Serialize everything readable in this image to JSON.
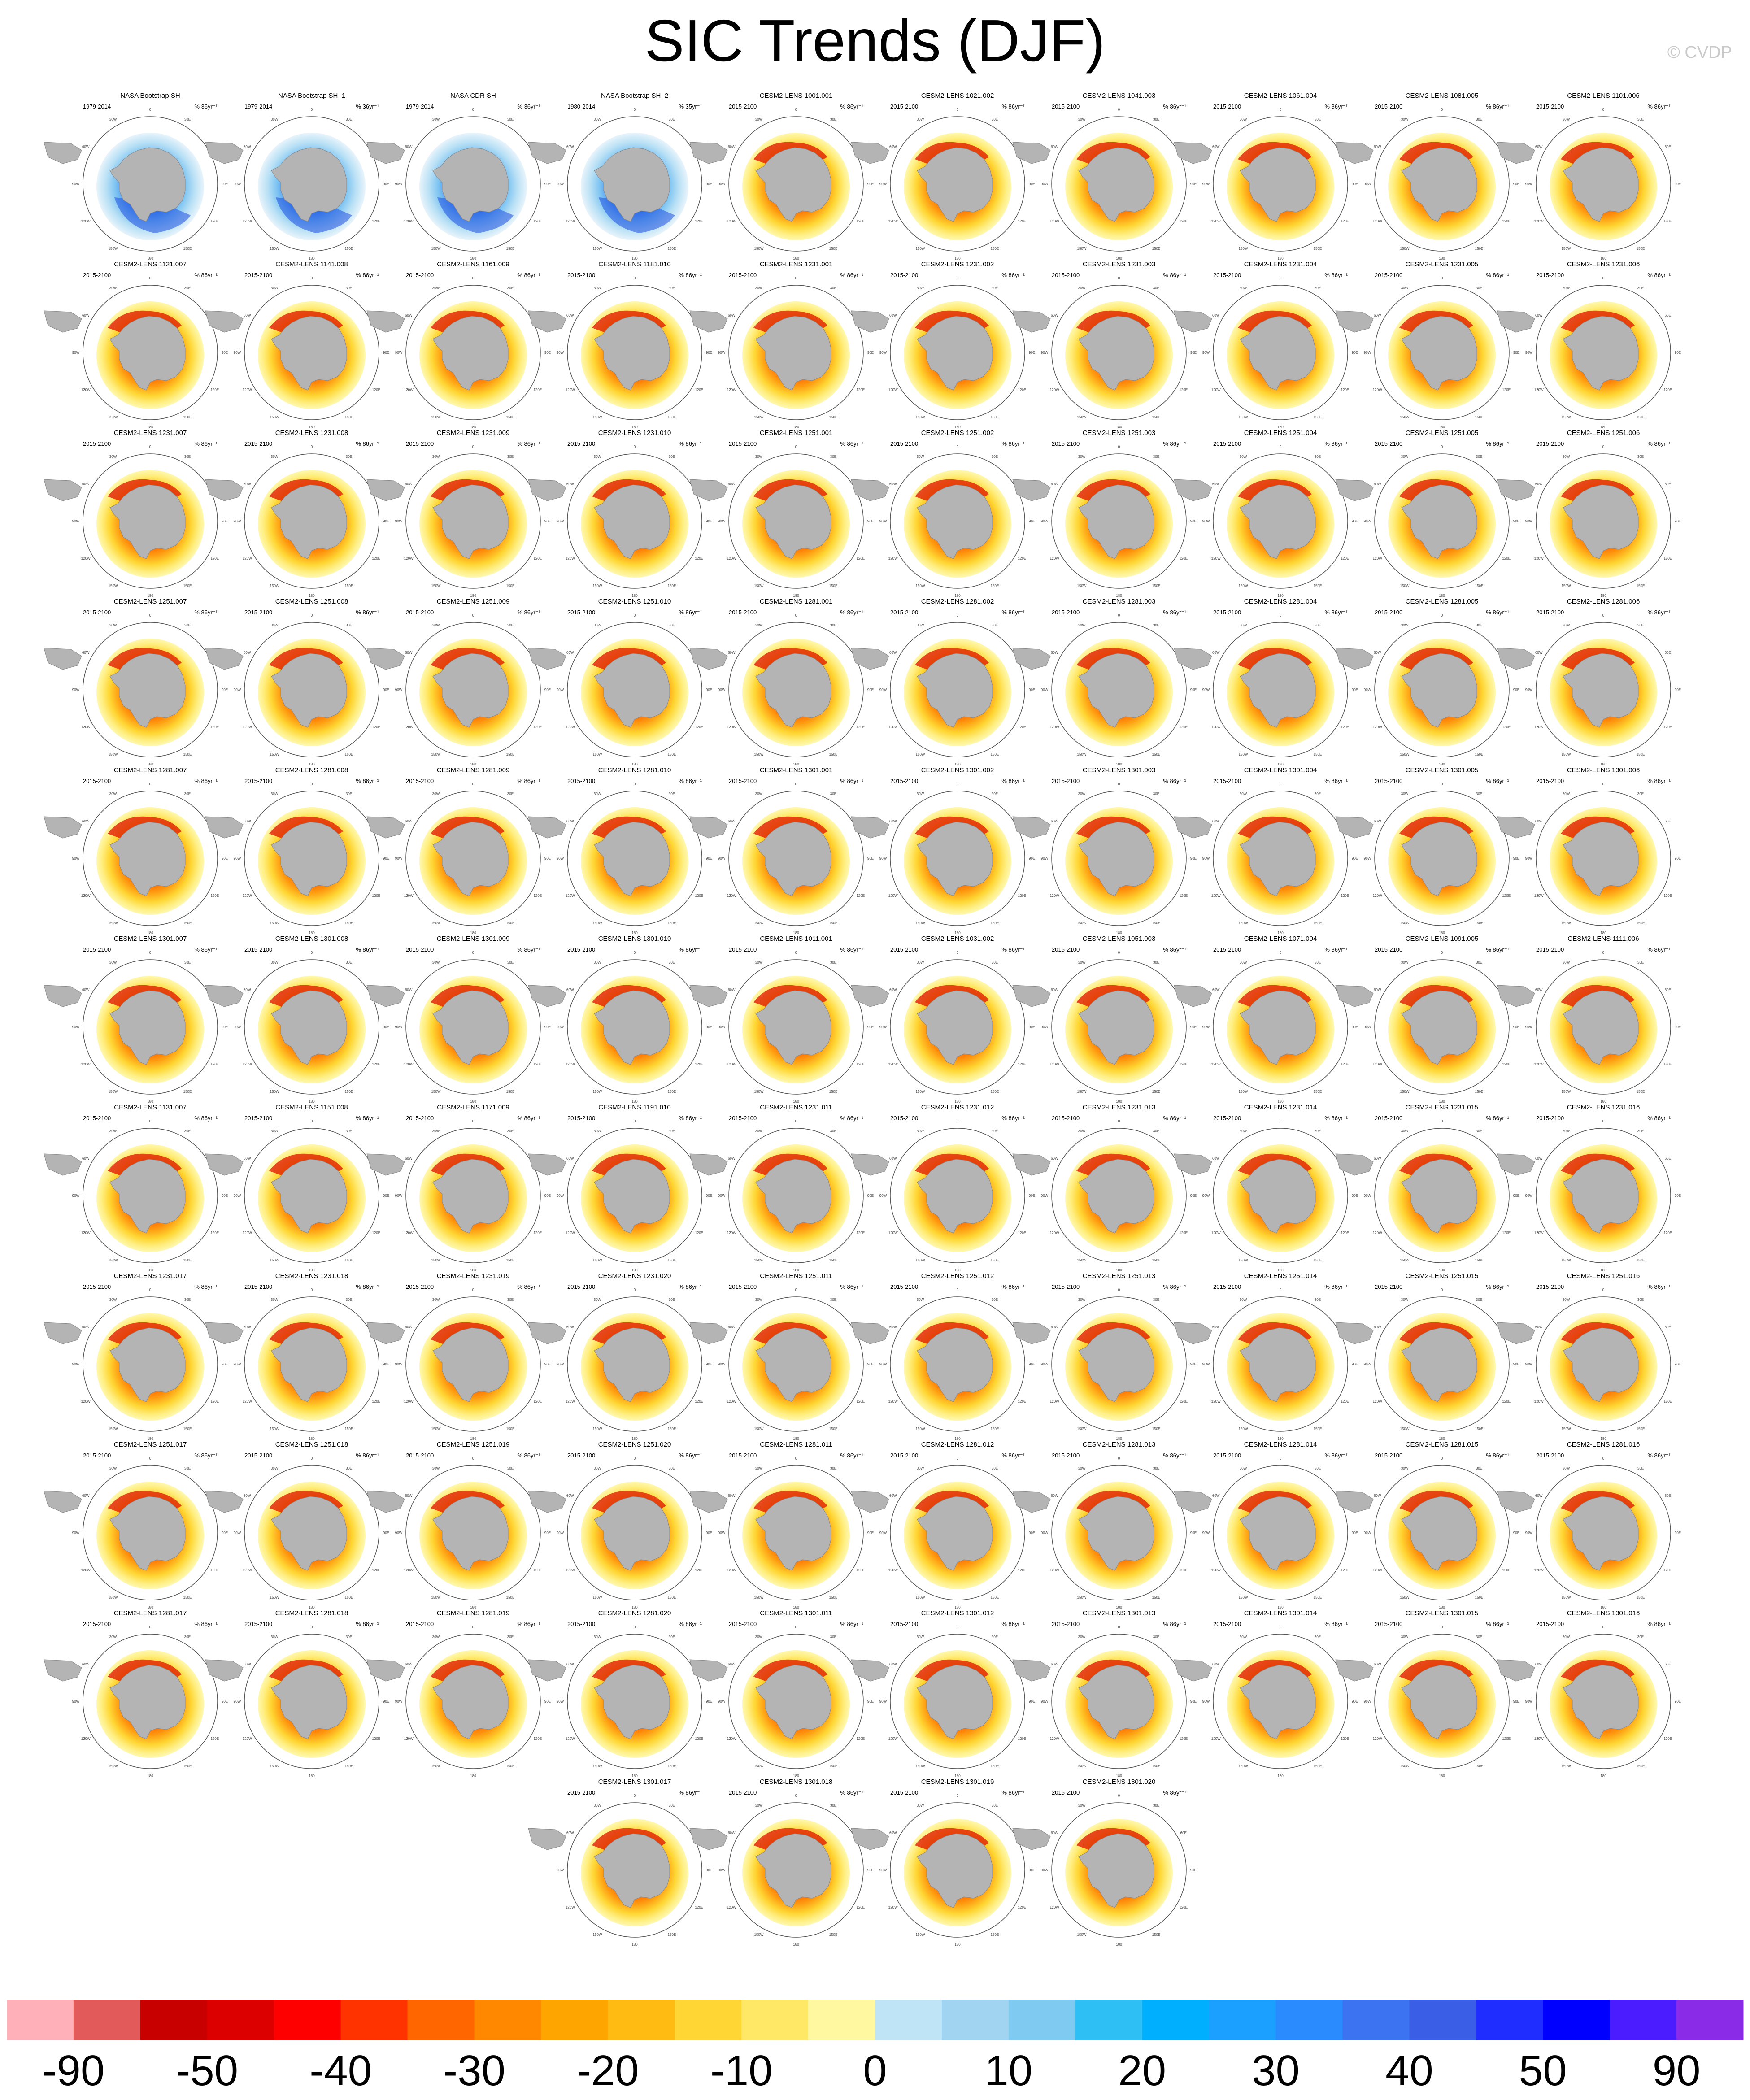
{
  "title": "SIC Trends (DJF)",
  "copyright": "© CVDP",
  "chart_data": {
    "type": "map-panel-grid",
    "projection": "south-polar-stereographic",
    "season": "DJF",
    "ring_labels": [
      "0",
      "30E",
      "60E",
      "90E",
      "120E",
      "150E",
      "180",
      "150W",
      "120W",
      "90W",
      "60W",
      "30W"
    ],
    "panels": [
      {
        "name": "NASA Bootstrap SH",
        "period": "1979-2014",
        "units": "% 36yr⁻¹",
        "obs": true
      },
      {
        "name": "NASA Bootstrap SH_1",
        "period": "1979-2014",
        "units": "% 36yr⁻¹",
        "obs": true
      },
      {
        "name": "NASA CDR SH",
        "period": "1979-2014",
        "units": "% 36yr⁻¹",
        "obs": true
      },
      {
        "name": "NASA Bootstrap SH_2",
        "period": "1980-2014",
        "units": "% 35yr⁻¹",
        "obs": true
      },
      {
        "name": "CESM2-LENS 1001.001",
        "period": "2015-2100",
        "units": "% 86yr⁻¹"
      },
      {
        "name": "CESM2-LENS 1021.002",
        "period": "2015-2100",
        "units": "% 86yr⁻¹"
      },
      {
        "name": "CESM2-LENS 1041.003",
        "period": "2015-2100",
        "units": "% 86yr⁻¹"
      },
      {
        "name": "CESM2-LENS 1061.004",
        "period": "2015-2100",
        "units": "% 86yr⁻¹"
      },
      {
        "name": "CESM2-LENS 1081.005",
        "period": "2015-2100",
        "units": "% 86yr⁻¹"
      },
      {
        "name": "CESM2-LENS 1101.006",
        "period": "2015-2100",
        "units": "% 86yr⁻¹"
      },
      {
        "name": "CESM2-LENS 1121.007",
        "period": "2015-2100",
        "units": "% 86yr⁻¹"
      },
      {
        "name": "CESM2-LENS 1141.008",
        "period": "2015-2100",
        "units": "% 86yr⁻¹"
      },
      {
        "name": "CESM2-LENS 1161.009",
        "period": "2015-2100",
        "units": "% 86yr⁻¹"
      },
      {
        "name": "CESM2-LENS 1181.010",
        "period": "2015-2100",
        "units": "% 86yr⁻¹"
      },
      {
        "name": "CESM2-LENS 1231.001",
        "period": "2015-2100",
        "units": "% 86yr⁻¹"
      },
      {
        "name": "CESM2-LENS 1231.002",
        "period": "2015-2100",
        "units": "% 86yr⁻¹"
      },
      {
        "name": "CESM2-LENS 1231.003",
        "period": "2015-2100",
        "units": "% 86yr⁻¹"
      },
      {
        "name": "CESM2-LENS 1231.004",
        "period": "2015-2100",
        "units": "% 86yr⁻¹"
      },
      {
        "name": "CESM2-LENS 1231.005",
        "period": "2015-2100",
        "units": "% 86yr⁻¹"
      },
      {
        "name": "CESM2-LENS 1231.006",
        "period": "2015-2100",
        "units": "% 86yr⁻¹"
      },
      {
        "name": "CESM2-LENS 1231.007",
        "period": "2015-2100",
        "units": "% 86yr⁻¹"
      },
      {
        "name": "CESM2-LENS 1231.008",
        "period": "2015-2100",
        "units": "% 86yr⁻¹"
      },
      {
        "name": "CESM2-LENS 1231.009",
        "period": "2015-2100",
        "units": "% 86yr⁻¹"
      },
      {
        "name": "CESM2-LENS 1231.010",
        "period": "2015-2100",
        "units": "% 86yr⁻¹"
      },
      {
        "name": "CESM2-LENS 1251.001",
        "period": "2015-2100",
        "units": "% 86yr⁻¹"
      },
      {
        "name": "CESM2-LENS 1251.002",
        "period": "2015-2100",
        "units": "% 86yr⁻¹"
      },
      {
        "name": "CESM2-LENS 1251.003",
        "period": "2015-2100",
        "units": "% 86yr⁻¹"
      },
      {
        "name": "CESM2-LENS 1251.004",
        "period": "2015-2100",
        "units": "% 86yr⁻¹"
      },
      {
        "name": "CESM2-LENS 1251.005",
        "period": "2015-2100",
        "units": "% 86yr⁻¹"
      },
      {
        "name": "CESM2-LENS 1251.006",
        "period": "2015-2100",
        "units": "% 86yr⁻¹"
      },
      {
        "name": "CESM2-LENS 1251.007",
        "period": "2015-2100",
        "units": "% 86yr⁻¹"
      },
      {
        "name": "CESM2-LENS 1251.008",
        "period": "2015-2100",
        "units": "% 86yr⁻¹"
      },
      {
        "name": "CESM2-LENS 1251.009",
        "period": "2015-2100",
        "units": "% 86yr⁻¹"
      },
      {
        "name": "CESM2-LENS 1251.010",
        "period": "2015-2100",
        "units": "% 86yr⁻¹"
      },
      {
        "name": "CESM2-LENS 1281.001",
        "period": "2015-2100",
        "units": "% 86yr⁻¹"
      },
      {
        "name": "CESM2-LENS 1281.002",
        "period": "2015-2100",
        "units": "% 86yr⁻¹"
      },
      {
        "name": "CESM2-LENS 1281.003",
        "period": "2015-2100",
        "units": "% 86yr⁻¹"
      },
      {
        "name": "CESM2-LENS 1281.004",
        "period": "2015-2100",
        "units": "% 86yr⁻¹"
      },
      {
        "name": "CESM2-LENS 1281.005",
        "period": "2015-2100",
        "units": "% 86yr⁻¹"
      },
      {
        "name": "CESM2-LENS 1281.006",
        "period": "2015-2100",
        "units": "% 86yr⁻¹"
      },
      {
        "name": "CESM2-LENS 1281.007",
        "period": "2015-2100",
        "units": "% 86yr⁻¹"
      },
      {
        "name": "CESM2-LENS 1281.008",
        "period": "2015-2100",
        "units": "% 86yr⁻¹"
      },
      {
        "name": "CESM2-LENS 1281.009",
        "period": "2015-2100",
        "units": "% 86yr⁻¹"
      },
      {
        "name": "CESM2-LENS 1281.010",
        "period": "2015-2100",
        "units": "% 86yr⁻¹"
      },
      {
        "name": "CESM2-LENS 1301.001",
        "period": "2015-2100",
        "units": "% 86yr⁻¹"
      },
      {
        "name": "CESM2-LENS 1301.002",
        "period": "2015-2100",
        "units": "% 86yr⁻¹"
      },
      {
        "name": "CESM2-LENS 1301.003",
        "period": "2015-2100",
        "units": "% 86yr⁻¹"
      },
      {
        "name": "CESM2-LENS 1301.004",
        "period": "2015-2100",
        "units": "% 86yr⁻¹"
      },
      {
        "name": "CESM2-LENS 1301.005",
        "period": "2015-2100",
        "units": "% 86yr⁻¹"
      },
      {
        "name": "CESM2-LENS 1301.006",
        "period": "2015-2100",
        "units": "% 86yr⁻¹"
      },
      {
        "name": "CESM2-LENS 1301.007",
        "period": "2015-2100",
        "units": "% 86yr⁻¹"
      },
      {
        "name": "CESM2-LENS 1301.008",
        "period": "2015-2100",
        "units": "% 86yr⁻¹"
      },
      {
        "name": "CESM2-LENS 1301.009",
        "period": "2015-2100",
        "units": "% 86yr⁻¹"
      },
      {
        "name": "CESM2-LENS 1301.010",
        "period": "2015-2100",
        "units": "% 86yr⁻¹"
      },
      {
        "name": "CESM2-LENS 1011.001",
        "period": "2015-2100",
        "units": "% 86yr⁻¹"
      },
      {
        "name": "CESM2-LENS 1031.002",
        "period": "2015-2100",
        "units": "% 86yr⁻¹"
      },
      {
        "name": "CESM2-LENS 1051.003",
        "period": "2015-2100",
        "units": "% 86yr⁻¹"
      },
      {
        "name": "CESM2-LENS 1071.004",
        "period": "2015-2100",
        "units": "% 86yr⁻¹"
      },
      {
        "name": "CESM2-LENS 1091.005",
        "period": "2015-2100",
        "units": "% 86yr⁻¹"
      },
      {
        "name": "CESM2-LENS 1111.006",
        "period": "2015-2100",
        "units": "% 86yr⁻¹"
      },
      {
        "name": "CESM2-LENS 1131.007",
        "period": "2015-2100",
        "units": "% 86yr⁻¹"
      },
      {
        "name": "CESM2-LENS 1151.008",
        "period": "2015-2100",
        "units": "% 86yr⁻¹"
      },
      {
        "name": "CESM2-LENS 1171.009",
        "period": "2015-2100",
        "units": "% 86yr⁻¹"
      },
      {
        "name": "CESM2-LENS 1191.010",
        "period": "2015-2100",
        "units": "% 86yr⁻¹"
      },
      {
        "name": "CESM2-LENS 1231.011",
        "period": "2015-2100",
        "units": "% 86yr⁻¹"
      },
      {
        "name": "CESM2-LENS 1231.012",
        "period": "2015-2100",
        "units": "% 86yr⁻¹"
      },
      {
        "name": "CESM2-LENS 1231.013",
        "period": "2015-2100",
        "units": "% 86yr⁻¹"
      },
      {
        "name": "CESM2-LENS 1231.014",
        "period": "2015-2100",
        "units": "% 86yr⁻¹"
      },
      {
        "name": "CESM2-LENS 1231.015",
        "period": "2015-2100",
        "units": "% 86yr⁻¹"
      },
      {
        "name": "CESM2-LENS 1231.016",
        "period": "2015-2100",
        "units": "% 86yr⁻¹"
      },
      {
        "name": "CESM2-LENS 1231.017",
        "period": "2015-2100",
        "units": "% 86yr⁻¹"
      },
      {
        "name": "CESM2-LENS 1231.018",
        "period": "2015-2100",
        "units": "% 86yr⁻¹"
      },
      {
        "name": "CESM2-LENS 1231.019",
        "period": "2015-2100",
        "units": "% 86yr⁻¹"
      },
      {
        "name": "CESM2-LENS 1231.020",
        "period": "2015-2100",
        "units": "% 86yr⁻¹"
      },
      {
        "name": "CESM2-LENS 1251.011",
        "period": "2015-2100",
        "units": "% 86yr⁻¹"
      },
      {
        "name": "CESM2-LENS 1251.012",
        "period": "2015-2100",
        "units": "% 86yr⁻¹"
      },
      {
        "name": "CESM2-LENS 1251.013",
        "period": "2015-2100",
        "units": "% 86yr⁻¹"
      },
      {
        "name": "CESM2-LENS 1251.014",
        "period": "2015-2100",
        "units": "% 86yr⁻¹"
      },
      {
        "name": "CESM2-LENS 1251.015",
        "period": "2015-2100",
        "units": "% 86yr⁻¹"
      },
      {
        "name": "CESM2-LENS 1251.016",
        "period": "2015-2100",
        "units": "% 86yr⁻¹"
      },
      {
        "name": "CESM2-LENS 1251.017",
        "period": "2015-2100",
        "units": "% 86yr⁻¹"
      },
      {
        "name": "CESM2-LENS 1251.018",
        "period": "2015-2100",
        "units": "% 86yr⁻¹"
      },
      {
        "name": "CESM2-LENS 1251.019",
        "period": "2015-2100",
        "units": "% 86yr⁻¹"
      },
      {
        "name": "CESM2-LENS 1251.020",
        "period": "2015-2100",
        "units": "% 86yr⁻¹"
      },
      {
        "name": "CESM2-LENS 1281.011",
        "period": "2015-2100",
        "units": "% 86yr⁻¹"
      },
      {
        "name": "CESM2-LENS 1281.012",
        "period": "2015-2100",
        "units": "% 86yr⁻¹"
      },
      {
        "name": "CESM2-LENS 1281.013",
        "period": "2015-2100",
        "units": "% 86yr⁻¹"
      },
      {
        "name": "CESM2-LENS 1281.014",
        "period": "2015-2100",
        "units": "% 86yr⁻¹"
      },
      {
        "name": "CESM2-LENS 1281.015",
        "period": "2015-2100",
        "units": "% 86yr⁻¹"
      },
      {
        "name": "CESM2-LENS 1281.016",
        "period": "2015-2100",
        "units": "% 86yr⁻¹"
      },
      {
        "name": "CESM2-LENS 1281.017",
        "period": "2015-2100",
        "units": "% 86yr⁻¹"
      },
      {
        "name": "CESM2-LENS 1281.018",
        "period": "2015-2100",
        "units": "% 86yr⁻¹"
      },
      {
        "name": "CESM2-LENS 1281.019",
        "period": "2015-2100",
        "units": "% 86yr⁻¹"
      },
      {
        "name": "CESM2-LENS 1281.020",
        "period": "2015-2100",
        "units": "% 86yr⁻¹"
      },
      {
        "name": "CESM2-LENS 1301.011",
        "period": "2015-2100",
        "units": "% 86yr⁻¹"
      },
      {
        "name": "CESM2-LENS 1301.012",
        "period": "2015-2100",
        "units": "% 86yr⁻¹"
      },
      {
        "name": "CESM2-LENS 1301.013",
        "period": "2015-2100",
        "units": "% 86yr⁻¹"
      },
      {
        "name": "CESM2-LENS 1301.014",
        "period": "2015-2100",
        "units": "% 86yr⁻¹"
      },
      {
        "name": "CESM2-LENS 1301.015",
        "period": "2015-2100",
        "units": "% 86yr⁻¹"
      },
      {
        "name": "CESM2-LENS 1301.016",
        "period": "2015-2100",
        "units": "% 86yr⁻¹"
      },
      {
        "name": "CESM2-LENS 1301.017",
        "period": "2015-2100",
        "units": "% 86yr⁻¹"
      },
      {
        "name": "CESM2-LENS 1301.018",
        "period": "2015-2100",
        "units": "% 86yr⁻¹"
      },
      {
        "name": "CESM2-LENS 1301.019",
        "period": "2015-2100",
        "units": "% 86yr⁻¹"
      },
      {
        "name": "CESM2-LENS 1301.020",
        "period": "2015-2100",
        "units": "% 86yr⁻¹"
      }
    ],
    "colorbar": {
      "orientation": "horizontal",
      "boxes": [
        "#ffb0b8",
        "#e35a5a",
        "#c80000",
        "#dd0000",
        "#ff0000",
        "#ff3300",
        "#ff6600",
        "#ff8800",
        "#ffa500",
        "#ffbb11",
        "#ffd633",
        "#ffe866",
        "#fff8a0",
        "#bfe4f5",
        "#a0d4f0",
        "#7ecaf0",
        "#2ec0f5",
        "#00b0ff",
        "#1ca0ff",
        "#2a8bff",
        "#3c73f0",
        "#3a5ee6",
        "#1f2eff",
        "#0000ff",
        "#4a1cff",
        "#8a2be8"
      ],
      "tick_labels": [
        "-90",
        "-50",
        "-40",
        "-30",
        "-20",
        "-10",
        "0",
        "10",
        "20",
        "30",
        "40",
        "50",
        "90"
      ],
      "tick_values": [
        -90,
        -50,
        -40,
        -30,
        -20,
        -10,
        0,
        10,
        20,
        30,
        40,
        50,
        90
      ]
    }
  }
}
